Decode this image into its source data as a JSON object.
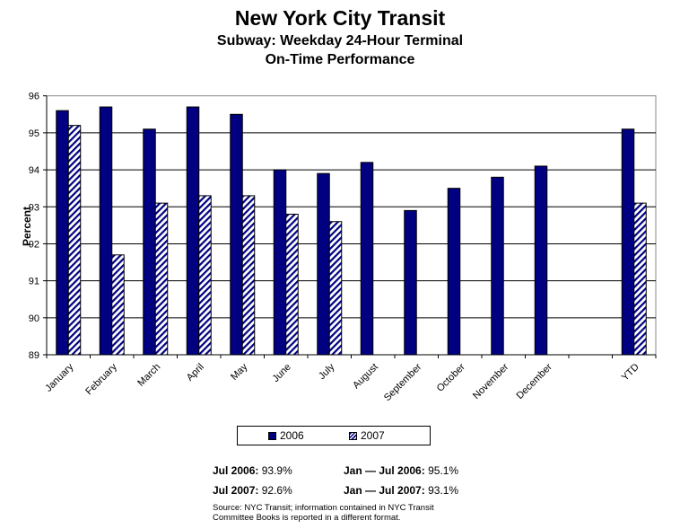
{
  "title": "New York City Transit",
  "subtitle_1": "Subway: Weekday 24-Hour Terminal",
  "subtitle_2": "On-Time Performance",
  "chart_data": {
    "type": "bar",
    "title": "New York City Transit — Subway: Weekday 24-Hour Terminal On-Time Performance",
    "xlabel": "",
    "ylabel": "Percent",
    "ylim": [
      89,
      96
    ],
    "yticks": [
      "89",
      "90",
      "91",
      "92",
      "93",
      "94",
      "95",
      "96"
    ],
    "grid": true,
    "legend_placement": "bottom",
    "categories": [
      "January",
      "February",
      "March",
      "April",
      "May",
      "June",
      "July",
      "August",
      "September",
      "October",
      "November",
      "December",
      "",
      "YTD"
    ],
    "series": [
      {
        "name": "2006",
        "color": "#000080",
        "pattern": "solid",
        "values": [
          95.6,
          95.7,
          95.1,
          95.7,
          95.5,
          94.0,
          93.9,
          94.2,
          92.9,
          93.5,
          93.8,
          94.1,
          null,
          95.1
        ]
      },
      {
        "name": "2007",
        "color": "#000080",
        "pattern": "diagonal-hatch",
        "values": [
          95.2,
          91.7,
          93.1,
          93.3,
          93.3,
          92.8,
          92.6,
          null,
          null,
          null,
          null,
          null,
          null,
          93.1
        ]
      }
    ]
  },
  "stats": {
    "jul2006_label": "Jul 2006:",
    "jul2006_value": "93.9%",
    "jul2007_label": "Jul 2007:",
    "jul2007_value": "92.6%",
    "ytd2006_label": "Jan — Jul 2006:",
    "ytd2006_value": "95.1%",
    "ytd2007_label": "Jan — Jul 2007:",
    "ytd2007_value": "93.1%"
  },
  "source_1": "Source: NYC Transit; information contained in NYC Transit",
  "source_2": "Committee Books is reported in a different format."
}
